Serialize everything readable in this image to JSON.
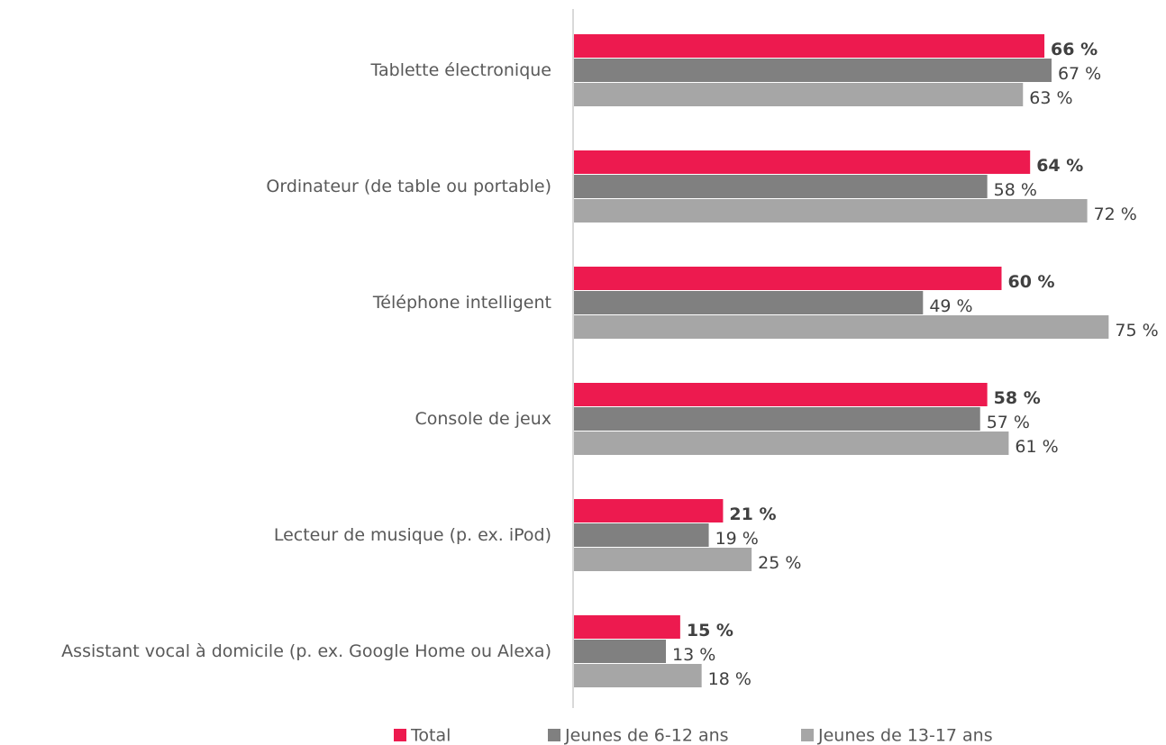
{
  "chart_data": {
    "type": "hbar",
    "categories": [
      "Tablette électronique",
      "Ordinateur (de table ou portable)",
      "Téléphone intelligent",
      "Console de jeux",
      "Lecteur de musique (p. ex. iPod)",
      "Assistant vocal à domicile (p. ex. Google Home ou Alexa)"
    ],
    "series": [
      {
        "name": "Total",
        "color": "#ed1a4f",
        "values": [
          66,
          64,
          60,
          58,
          21,
          15
        ],
        "value_labels": [
          "66 %",
          "64 %",
          "60 %",
          "58 %",
          "21 %",
          "15 %"
        ]
      },
      {
        "name": "Jeunes de 6-12 ans",
        "color": "#808080",
        "values": [
          67,
          58,
          49,
          57,
          19,
          13
        ],
        "value_labels": [
          "67 %",
          "58 %",
          "49 %",
          "57 %",
          "19 %",
          "13 %"
        ]
      },
      {
        "name": "Jeunes de 13-17 ans",
        "color": "#a6a6a6",
        "values": [
          63,
          72,
          75,
          61,
          25,
          18
        ],
        "value_labels": [
          "63 %",
          "72 %",
          "75 %",
          "61 %",
          "25 %",
          "18 %"
        ]
      }
    ],
    "xlim": [
      0,
      80
    ]
  }
}
